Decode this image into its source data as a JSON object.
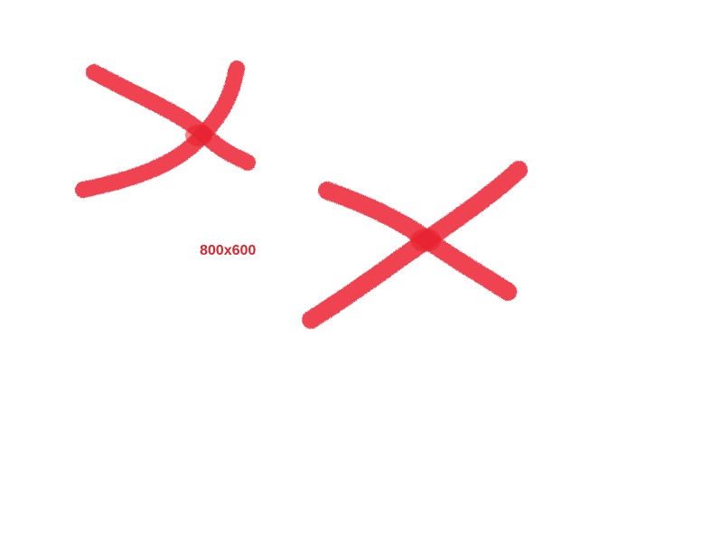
{
  "label": {
    "text": "800x600"
  },
  "marks": [
    {
      "name": "brush-cross-mark"
    },
    {
      "name": "brush-cross-mark"
    }
  ],
  "colors": {
    "brush": "#ee2a38",
    "brush_overlap": "#e31b2b",
    "label": "#d9242e",
    "background": "#ffffff"
  }
}
